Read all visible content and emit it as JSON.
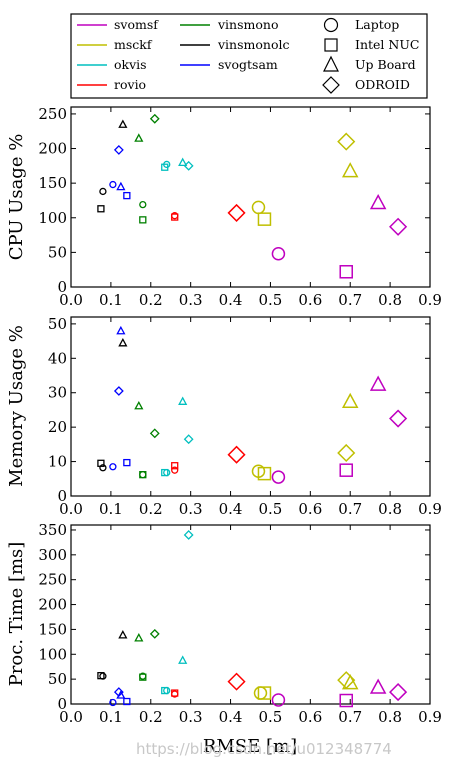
{
  "watermark": "https://blog.csdn.net/u012348774",
  "legend": {
    "algorithms": [
      {
        "name": "svomsf",
        "color": "#bf00bf"
      },
      {
        "name": "msckf",
        "color": "#bfbf00"
      },
      {
        "name": "okvis",
        "color": "#00bfbf"
      },
      {
        "name": "rovio",
        "color": "#ff0000"
      },
      {
        "name": "vinsmono",
        "color": "#008000"
      },
      {
        "name": "vinsmonolc",
        "color": "#000000"
      },
      {
        "name": "svogtsam",
        "color": "#0000ff"
      }
    ],
    "platforms": [
      {
        "name": "Laptop",
        "marker": "circle"
      },
      {
        "name": "Intel NUC",
        "marker": "square"
      },
      {
        "name": "Up Board",
        "marker": "triangle"
      },
      {
        "name": "ODROID",
        "marker": "diamond"
      }
    ]
  },
  "chart_data": [
    {
      "type": "scatter",
      "title": "",
      "xlabel": "",
      "ylabel": "CPU Usage %",
      "xlim": [
        0.0,
        0.9
      ],
      "ylim": [
        0,
        260
      ],
      "xticks": [
        "0.0",
        "0.1",
        "0.2",
        "0.3",
        "0.4",
        "0.5",
        "0.6",
        "0.7",
        "0.8",
        "0.9"
      ],
      "yticks": [
        "0",
        "50",
        "100",
        "150",
        "200",
        "250"
      ],
      "grid": false,
      "points": [
        {
          "alg": "svomsf",
          "platform": "Laptop",
          "x": 0.52,
          "y": 48
        },
        {
          "alg": "svomsf",
          "platform": "Intel NUC",
          "x": 0.69,
          "y": 22
        },
        {
          "alg": "svomsf",
          "platform": "Up Board",
          "x": 0.77,
          "y": 122
        },
        {
          "alg": "svomsf",
          "platform": "ODROID",
          "x": 0.82,
          "y": 87
        },
        {
          "alg": "msckf",
          "platform": "Laptop",
          "x": 0.47,
          "y": 115
        },
        {
          "alg": "msckf",
          "platform": "Intel NUC",
          "x": 0.485,
          "y": 98
        },
        {
          "alg": "msckf",
          "platform": "Up Board",
          "x": 0.7,
          "y": 168
        },
        {
          "alg": "msckf",
          "platform": "ODROID",
          "x": 0.69,
          "y": 210
        },
        {
          "alg": "okvis",
          "platform": "Laptop",
          "x": 0.24,
          "y": 177
        },
        {
          "alg": "okvis",
          "platform": "Intel NUC",
          "x": 0.235,
          "y": 173
        },
        {
          "alg": "okvis",
          "platform": "Up Board",
          "x": 0.28,
          "y": 180
        },
        {
          "alg": "okvis",
          "platform": "ODROID",
          "x": 0.295,
          "y": 175
        },
        {
          "alg": "rovio",
          "platform": "Laptop",
          "x": 0.26,
          "y": 103
        },
        {
          "alg": "rovio",
          "platform": "Intel NUC",
          "x": 0.26,
          "y": 101
        },
        {
          "alg": "rovio",
          "platform": "ODROID",
          "x": 0.415,
          "y": 107
        },
        {
          "alg": "vinsmono",
          "platform": "Laptop",
          "x": 0.18,
          "y": 119
        },
        {
          "alg": "vinsmono",
          "platform": "Intel NUC",
          "x": 0.18,
          "y": 97
        },
        {
          "alg": "vinsmono",
          "platform": "Up Board",
          "x": 0.17,
          "y": 215
        },
        {
          "alg": "vinsmono",
          "platform": "ODROID",
          "x": 0.21,
          "y": 243
        },
        {
          "alg": "vinsmonolc",
          "platform": "Laptop",
          "x": 0.08,
          "y": 138
        },
        {
          "alg": "vinsmonolc",
          "platform": "Intel NUC",
          "x": 0.075,
          "y": 113
        },
        {
          "alg": "vinsmonolc",
          "platform": "Up Board",
          "x": 0.13,
          "y": 235
        },
        {
          "alg": "svogtsam",
          "platform": "Laptop",
          "x": 0.105,
          "y": 148
        },
        {
          "alg": "svogtsam",
          "platform": "Intel NUC",
          "x": 0.14,
          "y": 132
        },
        {
          "alg": "svogtsam",
          "platform": "Up Board",
          "x": 0.125,
          "y": 145
        },
        {
          "alg": "svogtsam",
          "platform": "ODROID",
          "x": 0.12,
          "y": 198
        }
      ]
    },
    {
      "type": "scatter",
      "title": "",
      "xlabel": "",
      "ylabel": "Memory Usage %",
      "xlim": [
        0.0,
        0.9
      ],
      "ylim": [
        0,
        52
      ],
      "xticks": [
        "0.0",
        "0.1",
        "0.2",
        "0.3",
        "0.4",
        "0.5",
        "0.6",
        "0.7",
        "0.8",
        "0.9"
      ],
      "yticks": [
        "0",
        "10",
        "20",
        "30",
        "40",
        "50"
      ],
      "grid": false,
      "points": [
        {
          "alg": "svomsf",
          "platform": "Laptop",
          "x": 0.52,
          "y": 5.5
        },
        {
          "alg": "svomsf",
          "platform": "Intel NUC",
          "x": 0.69,
          "y": 7.5
        },
        {
          "alg": "svomsf",
          "platform": "Up Board",
          "x": 0.77,
          "y": 32.5
        },
        {
          "alg": "svomsf",
          "platform": "ODROID",
          "x": 0.82,
          "y": 22.5
        },
        {
          "alg": "msckf",
          "platform": "Laptop",
          "x": 0.47,
          "y": 7.2
        },
        {
          "alg": "msckf",
          "platform": "Intel NUC",
          "x": 0.485,
          "y": 6.5
        },
        {
          "alg": "msckf",
          "platform": "Up Board",
          "x": 0.7,
          "y": 27.5
        },
        {
          "alg": "msckf",
          "platform": "ODROID",
          "x": 0.69,
          "y": 12.5
        },
        {
          "alg": "okvis",
          "platform": "Laptop",
          "x": 0.24,
          "y": 6.8
        },
        {
          "alg": "okvis",
          "platform": "Intel NUC",
          "x": 0.235,
          "y": 6.8
        },
        {
          "alg": "okvis",
          "platform": "Up Board",
          "x": 0.28,
          "y": 27.5
        },
        {
          "alg": "okvis",
          "platform": "ODROID",
          "x": 0.295,
          "y": 16.5
        },
        {
          "alg": "rovio",
          "platform": "Laptop",
          "x": 0.26,
          "y": 7.5
        },
        {
          "alg": "rovio",
          "platform": "Intel NUC",
          "x": 0.26,
          "y": 8.8
        },
        {
          "alg": "rovio",
          "platform": "ODROID",
          "x": 0.415,
          "y": 12.0
        },
        {
          "alg": "vinsmono",
          "platform": "Laptop",
          "x": 0.18,
          "y": 6.2
        },
        {
          "alg": "vinsmono",
          "platform": "Intel NUC",
          "x": 0.18,
          "y": 6.2
        },
        {
          "alg": "vinsmono",
          "platform": "Up Board",
          "x": 0.17,
          "y": 26.2
        },
        {
          "alg": "vinsmono",
          "platform": "ODROID",
          "x": 0.21,
          "y": 18.2
        },
        {
          "alg": "vinsmonolc",
          "platform": "Laptop",
          "x": 0.08,
          "y": 8.2
        },
        {
          "alg": "vinsmonolc",
          "platform": "Intel NUC",
          "x": 0.075,
          "y": 9.5
        },
        {
          "alg": "vinsmonolc",
          "platform": "Up Board",
          "x": 0.13,
          "y": 44.5
        },
        {
          "alg": "svogtsam",
          "platform": "Laptop",
          "x": 0.105,
          "y": 8.5
        },
        {
          "alg": "svogtsam",
          "platform": "Intel NUC",
          "x": 0.14,
          "y": 9.7
        },
        {
          "alg": "svogtsam",
          "platform": "Up Board",
          "x": 0.125,
          "y": 48.0
        },
        {
          "alg": "svogtsam",
          "platform": "ODROID",
          "x": 0.12,
          "y": 30.5
        }
      ]
    },
    {
      "type": "scatter",
      "title": "",
      "xlabel": "RMSE [m]",
      "ylabel": "Proc. Time [ms]",
      "xlim": [
        0.0,
        0.9
      ],
      "ylim": [
        0,
        360
      ],
      "xticks": [
        "0.0",
        "0.1",
        "0.2",
        "0.3",
        "0.4",
        "0.5",
        "0.6",
        "0.7",
        "0.8",
        "0.9"
      ],
      "yticks": [
        "0",
        "50",
        "100",
        "150",
        "200",
        "250",
        "300",
        "350"
      ],
      "grid": false,
      "points": [
        {
          "alg": "svomsf",
          "platform": "Laptop",
          "x": 0.52,
          "y": 8
        },
        {
          "alg": "svomsf",
          "platform": "Intel NUC",
          "x": 0.69,
          "y": 7
        },
        {
          "alg": "svomsf",
          "platform": "Up Board",
          "x": 0.77,
          "y": 34
        },
        {
          "alg": "svomsf",
          "platform": "ODROID",
          "x": 0.82,
          "y": 24
        },
        {
          "alg": "msckf",
          "platform": "Laptop",
          "x": 0.475,
          "y": 22
        },
        {
          "alg": "msckf",
          "platform": "Intel NUC",
          "x": 0.485,
          "y": 22
        },
        {
          "alg": "msckf",
          "platform": "Up Board",
          "x": 0.7,
          "y": 43
        },
        {
          "alg": "msckf",
          "platform": "ODROID",
          "x": 0.69,
          "y": 48
        },
        {
          "alg": "okvis",
          "platform": "Laptop",
          "x": 0.24,
          "y": 27
        },
        {
          "alg": "okvis",
          "platform": "Intel NUC",
          "x": 0.235,
          "y": 27
        },
        {
          "alg": "okvis",
          "platform": "Up Board",
          "x": 0.28,
          "y": 88
        },
        {
          "alg": "okvis",
          "platform": "ODROID",
          "x": 0.295,
          "y": 340
        },
        {
          "alg": "rovio",
          "platform": "Laptop",
          "x": 0.26,
          "y": 20
        },
        {
          "alg": "rovio",
          "platform": "Intel NUC",
          "x": 0.26,
          "y": 22
        },
        {
          "alg": "rovio",
          "platform": "ODROID",
          "x": 0.415,
          "y": 45
        },
        {
          "alg": "vinsmono",
          "platform": "Laptop",
          "x": 0.18,
          "y": 56
        },
        {
          "alg": "vinsmono",
          "platform": "Intel NUC",
          "x": 0.18,
          "y": 54
        },
        {
          "alg": "vinsmono",
          "platform": "Up Board",
          "x": 0.17,
          "y": 133
        },
        {
          "alg": "vinsmono",
          "platform": "ODROID",
          "x": 0.21,
          "y": 141
        },
        {
          "alg": "vinsmonolc",
          "platform": "Laptop",
          "x": 0.08,
          "y": 56
        },
        {
          "alg": "vinsmonolc",
          "platform": "Intel NUC",
          "x": 0.075,
          "y": 57
        },
        {
          "alg": "vinsmonolc",
          "platform": "Up Board",
          "x": 0.13,
          "y": 139
        },
        {
          "alg": "svogtsam",
          "platform": "Laptop",
          "x": 0.105,
          "y": 3
        },
        {
          "alg": "svogtsam",
          "platform": "Intel NUC",
          "x": 0.14,
          "y": 5
        },
        {
          "alg": "svogtsam",
          "platform": "Up Board",
          "x": 0.125,
          "y": 18
        },
        {
          "alg": "svogtsam",
          "platform": "ODROID",
          "x": 0.12,
          "y": 24
        }
      ]
    }
  ]
}
